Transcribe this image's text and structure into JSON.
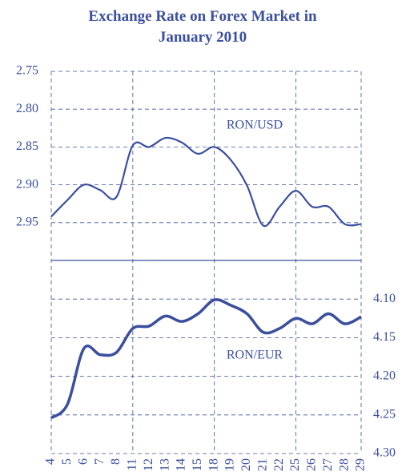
{
  "chart_data": [
    {
      "type": "line",
      "title": "Exchange Rate on Forex Market in January 2010",
      "ylim": [
        2.75,
        3.0
      ],
      "inverted": true,
      "axis_side": "left",
      "grid": true,
      "yticks": [
        2.75,
        {
          "value": 2.8,
          "label": "2.80"
        },
        2.85,
        {
          "value": 2.9,
          "label": "2.90"
        },
        2.95
      ],
      "series": [
        {
          "name": "RON/USD",
          "color": "#3b4f9e",
          "values": [
            2.942,
            2.92,
            2.9,
            2.907,
            2.916,
            2.848,
            2.85,
            2.838,
            2.844,
            2.859,
            2.85,
            2.867,
            2.901,
            2.954,
            2.929,
            2.908,
            2.929,
            2.929,
            2.952,
            2.952
          ]
        }
      ]
    },
    {
      "type": "line",
      "categories": [
        "4",
        "5",
        "6",
        "7",
        "8",
        "11",
        "12",
        "13",
        "14",
        "15",
        "18",
        "19",
        "20",
        "21",
        "22",
        "25",
        "26",
        "27",
        "28",
        "29"
      ],
      "ylim": [
        4.05,
        4.3
      ],
      "inverted": true,
      "axis_side": "right",
      "grid": true,
      "yticks": [
        {
          "value": 4.1,
          "label": "4.10"
        },
        4.15,
        {
          "value": 4.2,
          "label": "4.20"
        },
        4.25,
        {
          "value": 4.3,
          "label": "4.30"
        }
      ],
      "series": [
        {
          "name": "RON/EUR",
          "color": "#3b4f9e",
          "values": [
            4.254,
            4.236,
            4.164,
            4.172,
            4.169,
            4.138,
            4.135,
            4.122,
            4.129,
            4.119,
            4.101,
            4.108,
            4.119,
            4.143,
            4.138,
            4.125,
            4.132,
            4.119,
            4.132,
            4.123
          ]
        }
      ]
    }
  ]
}
